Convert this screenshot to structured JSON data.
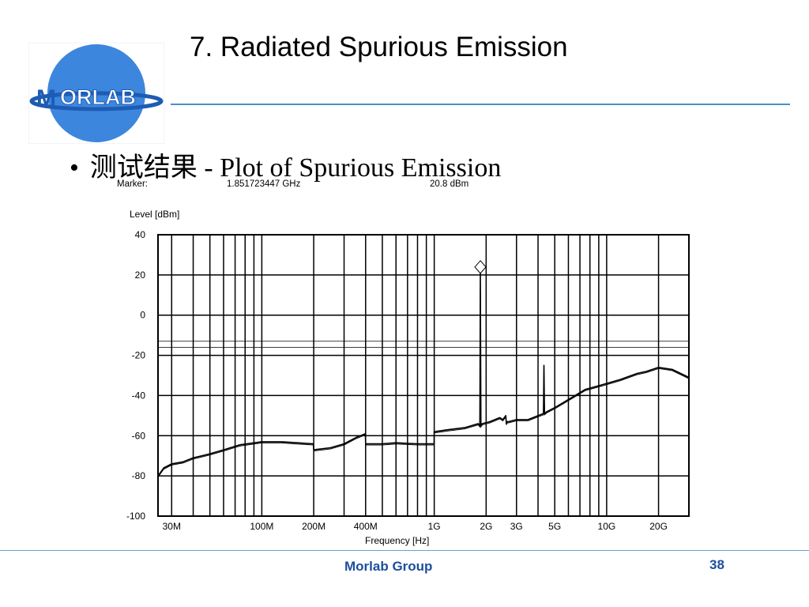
{
  "slide": {
    "title": "7. Radiated Spurious Emission",
    "bullet_symbol": "•",
    "bullet_text": "测试结果 - Plot of Spurious Emission",
    "footer": "Morlab Group",
    "page_number": "38"
  },
  "logo": {
    "text_m": "M",
    "text_rest": "ORLAB",
    "circle_color": "#3d86dd",
    "banner_color": "#1e5cb3"
  },
  "chart_data": {
    "type": "line",
    "marker": {
      "label": "Marker:",
      "frequency": "1.851723447 GHz",
      "level": "20.8 dBm",
      "x": 1851723447.0,
      "y": 20.8
    },
    "ylabel": "Level [dBm]",
    "xlabel": "Frequency [Hz]",
    "ylim": [
      -100,
      40
    ],
    "xlim": [
      25000000,
      30000000000
    ],
    "x_scale": "log",
    "grid": true,
    "y_ticks": [
      "40",
      "20",
      "0",
      "-20",
      "-40",
      "-60",
      "-80",
      "-100"
    ],
    "x_ticks": [
      {
        "label": "30M",
        "value": 30000000
      },
      {
        "label": "100M",
        "value": 100000000
      },
      {
        "label": "200M",
        "value": 200000000
      },
      {
        "label": "400M",
        "value": 400000000
      },
      {
        "label": "1G",
        "value": 1000000000
      },
      {
        "label": "2G",
        "value": 2000000000
      },
      {
        "label": "3G",
        "value": 3000000000
      },
      {
        "label": "5G",
        "value": 5000000000
      },
      {
        "label": "10G",
        "value": 10000000000
      },
      {
        "label": "20G",
        "value": 20000000000
      }
    ],
    "limit_lines": [
      -13,
      -16
    ],
    "series": [
      {
        "x": [
          25000000,
          27000000,
          30000000,
          35000000,
          40000000,
          50000000,
          60000000,
          75000000,
          100000000,
          130000000,
          160000000,
          199000000,
          200000000,
          250000000,
          300000000,
          350000000,
          399000000,
          400000000,
          500000000,
          600000000,
          800000000,
          999000000,
          1000000000,
          1200000000,
          1500000000,
          1800000000,
          1840000000,
          1851723447,
          1865000000,
          1900000000,
          2100000000,
          2400000000,
          2500000000,
          2600000000,
          2620000000,
          2650000000,
          2700000000,
          3000000000,
          3500000000,
          4000000000,
          4300000000,
          4330000000,
          4360000000,
          4500000000,
          5000000000,
          6000000000,
          7500000000,
          10000000000,
          12000000000,
          15000000000,
          17000000000,
          20000000000,
          24000000000,
          30000000000
        ],
        "y": [
          -80,
          -76,
          -74,
          -73,
          -71,
          -69,
          -67,
          -64.5,
          -63,
          -63,
          -63.5,
          -64,
          -67,
          -66,
          -64,
          -61,
          -59,
          -64,
          -64,
          -63.5,
          -64,
          -64,
          -58,
          -57,
          -56,
          -54,
          -55,
          20.8,
          -55,
          -54,
          -53,
          -51,
          -52,
          -50,
          -54,
          -53,
          -53,
          -52,
          -52,
          -50,
          -49,
          -25,
          -49,
          -48,
          -46,
          -42,
          -37,
          -34,
          -32,
          -29,
          -28,
          -26,
          -27,
          -31
        ]
      }
    ],
    "spurs": [
      {
        "x": 1851723447,
        "y": 20.8
      },
      {
        "x": 1860000000,
        "y": 6
      },
      {
        "x": 2700000000,
        "y": -42
      },
      {
        "x": 4330000000,
        "y": -25
      }
    ]
  }
}
